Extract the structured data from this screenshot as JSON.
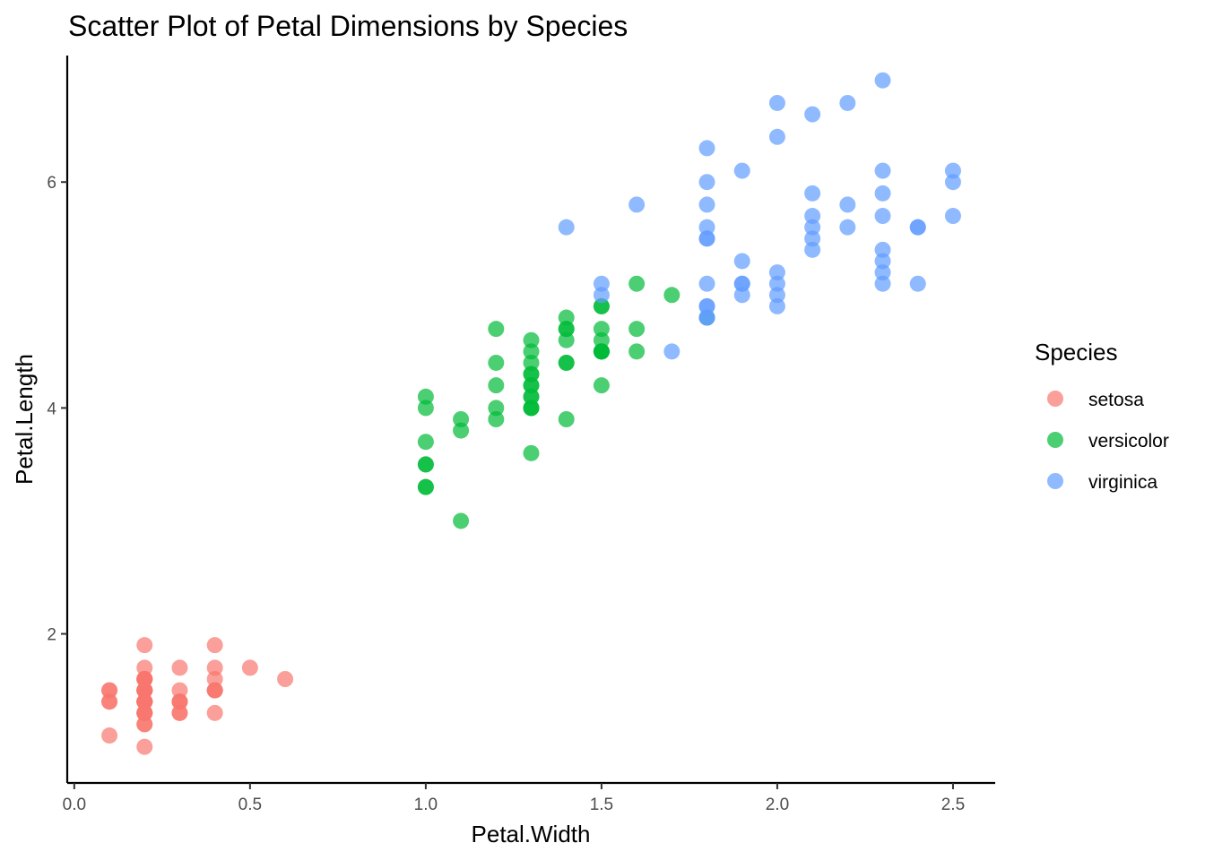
{
  "chart_data": {
    "type": "scatter",
    "title": "Scatter Plot of Petal Dimensions by Species",
    "xlabel": "Petal.Width",
    "ylabel": "Petal.Length",
    "xlim": [
      -0.02,
      2.62
    ],
    "ylim": [
      0.68,
      7.12
    ],
    "x_ticks": [
      0.0,
      0.5,
      1.0,
      1.5,
      2.0,
      2.5
    ],
    "x_tick_labels": [
      "0.0",
      "0.5",
      "1.0",
      "1.5",
      "2.0",
      "2.5"
    ],
    "y_ticks": [
      2,
      4,
      6
    ],
    "y_tick_labels": [
      "2",
      "4",
      "6"
    ],
    "grid": false,
    "legend": {
      "title": "Species",
      "position": "right"
    },
    "series": [
      {
        "name": "setosa",
        "color": "#F8766D",
        "points": [
          [
            0.2,
            1.4
          ],
          [
            0.2,
            1.4
          ],
          [
            0.2,
            1.3
          ],
          [
            0.2,
            1.5
          ],
          [
            0.2,
            1.4
          ],
          [
            0.4,
            1.7
          ],
          [
            0.3,
            1.4
          ],
          [
            0.2,
            1.5
          ],
          [
            0.2,
            1.4
          ],
          [
            0.1,
            1.5
          ],
          [
            0.2,
            1.5
          ],
          [
            0.2,
            1.6
          ],
          [
            0.1,
            1.4
          ],
          [
            0.1,
            1.1
          ],
          [
            0.2,
            1.2
          ],
          [
            0.4,
            1.5
          ],
          [
            0.4,
            1.3
          ],
          [
            0.3,
            1.4
          ],
          [
            0.3,
            1.7
          ],
          [
            0.3,
            1.5
          ],
          [
            0.2,
            1.7
          ],
          [
            0.4,
            1.5
          ],
          [
            0.2,
            1.0
          ],
          [
            0.5,
            1.7
          ],
          [
            0.2,
            1.9
          ],
          [
            0.2,
            1.6
          ],
          [
            0.4,
            1.6
          ],
          [
            0.2,
            1.5
          ],
          [
            0.2,
            1.4
          ],
          [
            0.2,
            1.6
          ],
          [
            0.2,
            1.6
          ],
          [
            0.4,
            1.5
          ],
          [
            0.1,
            1.5
          ],
          [
            0.2,
            1.4
          ],
          [
            0.2,
            1.5
          ],
          [
            0.2,
            1.2
          ],
          [
            0.2,
            1.3
          ],
          [
            0.1,
            1.4
          ],
          [
            0.2,
            1.3
          ],
          [
            0.2,
            1.5
          ],
          [
            0.3,
            1.3
          ],
          [
            0.3,
            1.3
          ],
          [
            0.2,
            1.3
          ],
          [
            0.6,
            1.6
          ],
          [
            0.4,
            1.9
          ],
          [
            0.3,
            1.4
          ],
          [
            0.2,
            1.6
          ],
          [
            0.2,
            1.4
          ],
          [
            0.2,
            1.5
          ],
          [
            0.2,
            1.4
          ]
        ]
      },
      {
        "name": "versicolor",
        "color": "#00BA38",
        "points": [
          [
            1.4,
            4.7
          ],
          [
            1.5,
            4.5
          ],
          [
            1.5,
            4.9
          ],
          [
            1.3,
            4.0
          ],
          [
            1.5,
            4.6
          ],
          [
            1.3,
            4.5
          ],
          [
            1.6,
            4.7
          ],
          [
            1.0,
            3.3
          ],
          [
            1.3,
            4.6
          ],
          [
            1.4,
            3.9
          ],
          [
            1.0,
            3.5
          ],
          [
            1.5,
            4.2
          ],
          [
            1.0,
            4.0
          ],
          [
            1.4,
            4.7
          ],
          [
            1.3,
            3.6
          ],
          [
            1.4,
            4.4
          ],
          [
            1.5,
            4.5
          ],
          [
            1.0,
            4.1
          ],
          [
            1.5,
            4.5
          ],
          [
            1.1,
            3.9
          ],
          [
            1.8,
            4.8
          ],
          [
            1.3,
            4.0
          ],
          [
            1.5,
            4.9
          ],
          [
            1.2,
            4.7
          ],
          [
            1.3,
            4.3
          ],
          [
            1.4,
            4.4
          ],
          [
            1.4,
            4.8
          ],
          [
            1.7,
            5.0
          ],
          [
            1.5,
            4.5
          ],
          [
            1.0,
            3.5
          ],
          [
            1.1,
            3.8
          ],
          [
            1.0,
            3.7
          ],
          [
            1.2,
            3.9
          ],
          [
            1.6,
            5.1
          ],
          [
            1.5,
            4.5
          ],
          [
            1.6,
            4.5
          ],
          [
            1.5,
            4.7
          ],
          [
            1.3,
            4.4
          ],
          [
            1.3,
            4.1
          ],
          [
            1.3,
            4.0
          ],
          [
            1.2,
            4.4
          ],
          [
            1.4,
            4.6
          ],
          [
            1.2,
            4.0
          ],
          [
            1.0,
            3.3
          ],
          [
            1.3,
            4.2
          ],
          [
            1.2,
            4.2
          ],
          [
            1.3,
            4.2
          ],
          [
            1.3,
            4.3
          ],
          [
            1.1,
            3.0
          ],
          [
            1.3,
            4.1
          ]
        ]
      },
      {
        "name": "virginica",
        "color": "#619CFF",
        "points": [
          [
            2.5,
            6.0
          ],
          [
            1.9,
            5.1
          ],
          [
            2.1,
            5.9
          ],
          [
            1.8,
            5.6
          ],
          [
            2.2,
            5.8
          ],
          [
            2.1,
            6.6
          ],
          [
            1.7,
            4.5
          ],
          [
            1.8,
            6.3
          ],
          [
            1.8,
            5.8
          ],
          [
            2.5,
            6.1
          ],
          [
            2.0,
            5.1
          ],
          [
            1.9,
            5.3
          ],
          [
            2.1,
            5.5
          ],
          [
            2.0,
            5.0
          ],
          [
            2.4,
            5.1
          ],
          [
            2.3,
            5.3
          ],
          [
            1.8,
            5.5
          ],
          [
            2.2,
            6.7
          ],
          [
            2.3,
            6.9
          ],
          [
            1.5,
            5.0
          ],
          [
            2.3,
            5.7
          ],
          [
            2.0,
            4.9
          ],
          [
            2.0,
            6.7
          ],
          [
            1.8,
            4.9
          ],
          [
            2.1,
            5.7
          ],
          [
            1.8,
            6.0
          ],
          [
            1.8,
            4.8
          ],
          [
            1.8,
            4.9
          ],
          [
            2.1,
            5.6
          ],
          [
            1.6,
            5.8
          ],
          [
            1.9,
            6.1
          ],
          [
            2.0,
            6.4
          ],
          [
            2.2,
            5.6
          ],
          [
            1.5,
            5.1
          ],
          [
            1.4,
            5.6
          ],
          [
            2.3,
            6.1
          ],
          [
            2.4,
            5.6
          ],
          [
            1.8,
            5.5
          ],
          [
            1.8,
            4.8
          ],
          [
            2.1,
            5.4
          ],
          [
            2.4,
            5.6
          ],
          [
            2.3,
            5.1
          ],
          [
            1.9,
            5.1
          ],
          [
            2.3,
            5.9
          ],
          [
            2.5,
            5.7
          ],
          [
            2.3,
            5.2
          ],
          [
            1.9,
            5.0
          ],
          [
            2.0,
            5.2
          ],
          [
            2.3,
            5.4
          ],
          [
            1.8,
            5.1
          ]
        ]
      }
    ]
  }
}
